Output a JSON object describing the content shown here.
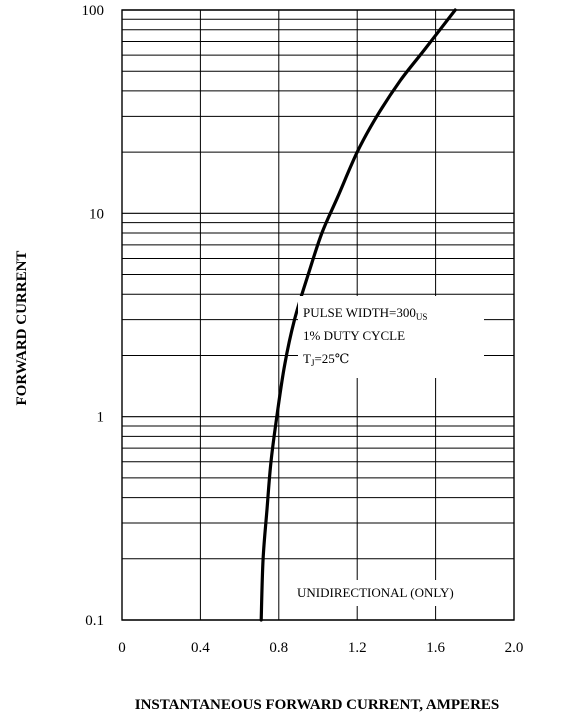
{
  "chart_data": {
    "type": "line",
    "xlabel": "INSTANTANEOUS FORWARD CURRENT, AMPERES",
    "ylabel": "FORWARD CURRENT",
    "xlim": [
      0,
      2.0
    ],
    "ylim": [
      0.1,
      100
    ],
    "yscale": "log",
    "grid": true,
    "x_ticks": [
      "0",
      "0.4",
      "0.8",
      "1.2",
      "1.6",
      "2.0"
    ],
    "y_ticks": [
      "0.1",
      "1",
      "10",
      "100"
    ],
    "series": [
      {
        "points": [
          [
            0.71,
            0.1
          ],
          [
            0.72,
            0.2
          ],
          [
            0.74,
            0.35
          ],
          [
            0.76,
            0.6
          ],
          [
            0.79,
            1.0
          ],
          [
            0.83,
            1.8
          ],
          [
            0.88,
            3.0
          ],
          [
            0.95,
            5.0
          ],
          [
            1.02,
            8.0
          ],
          [
            1.1,
            12.0
          ],
          [
            1.2,
            20.0
          ],
          [
            1.3,
            30.0
          ],
          [
            1.42,
            45.0
          ],
          [
            1.55,
            65.0
          ],
          [
            1.7,
            100.0
          ]
        ]
      }
    ],
    "annotations": {
      "pulse": {
        "line1_main": "PULSE WIDTH=300",
        "line1_sub": "US",
        "line2": "1% DUTY CYCLE",
        "line3_t": "T",
        "line3_sub": "J",
        "line3_rest": "=25℃"
      },
      "note": "UNIDIRECTIONAL (ONLY)"
    }
  }
}
